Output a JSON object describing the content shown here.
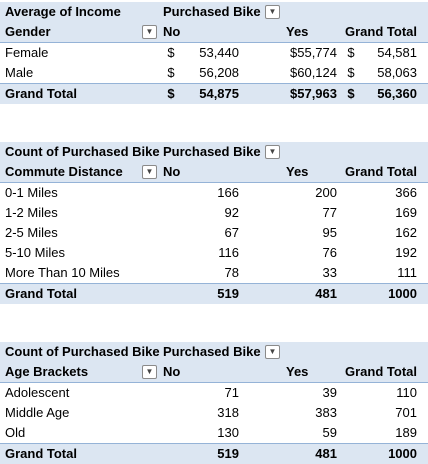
{
  "income_pivot": {
    "value_label": "Average of Income",
    "column_field": "Purchased Bike",
    "row_field": "Gender",
    "columns": [
      "No",
      "Yes",
      "Grand Total"
    ],
    "rows": [
      {
        "label": "Female",
        "cur1": "$",
        "no": "53,440",
        "yes": "$55,774",
        "cur3": "$",
        "total": "54,581"
      },
      {
        "label": "Male",
        "cur1": "$",
        "no": "56,208",
        "yes": "$60,124",
        "cur3": "$",
        "total": "58,063"
      }
    ],
    "grand_total": {
      "label": "Grand Total",
      "cur1": "$",
      "no": "54,875",
      "yes": "$57,963",
      "cur3": "$",
      "total": "56,360"
    }
  },
  "commute_pivot": {
    "value_label": "Count of Purchased Bike",
    "column_field": "Purchased Bike",
    "row_field": "Commute Distance",
    "columns": [
      "No",
      "Yes",
      "Grand Total"
    ],
    "rows": [
      {
        "label": "0-1 Miles",
        "no": "166",
        "yes": "200",
        "total": "366"
      },
      {
        "label": "1-2 Miles",
        "no": "92",
        "yes": "77",
        "total": "169"
      },
      {
        "label": "2-5 Miles",
        "no": "67",
        "yes": "95",
        "total": "162"
      },
      {
        "label": "5-10 Miles",
        "no": "116",
        "yes": "76",
        "total": "192"
      },
      {
        "label": "More Than 10 Miles",
        "no": "78",
        "yes": "33",
        "total": "111"
      }
    ],
    "grand_total": {
      "label": "Grand Total",
      "no": "519",
      "yes": "481",
      "total": "1000"
    }
  },
  "age_pivot": {
    "value_label": "Count of Purchased Bike",
    "column_field": "Purchased Bike",
    "row_field": "Age Brackets",
    "columns": [
      "No",
      "Yes",
      "Grand Total"
    ],
    "rows": [
      {
        "label": "Adolescent",
        "no": "71",
        "yes": "39",
        "total": "110"
      },
      {
        "label": "Middle Age",
        "no": "318",
        "yes": "383",
        "total": "701"
      },
      {
        "label": "Old",
        "no": "130",
        "yes": "59",
        "total": "189"
      }
    ],
    "grand_total": {
      "label": "Grand Total",
      "no": "519",
      "yes": "481",
      "total": "1000"
    }
  },
  "icons": {
    "filter_dropdown": "chevron-down-icon"
  },
  "colors": {
    "header_fill": "#dce6f2",
    "border": "#95b3d7"
  }
}
